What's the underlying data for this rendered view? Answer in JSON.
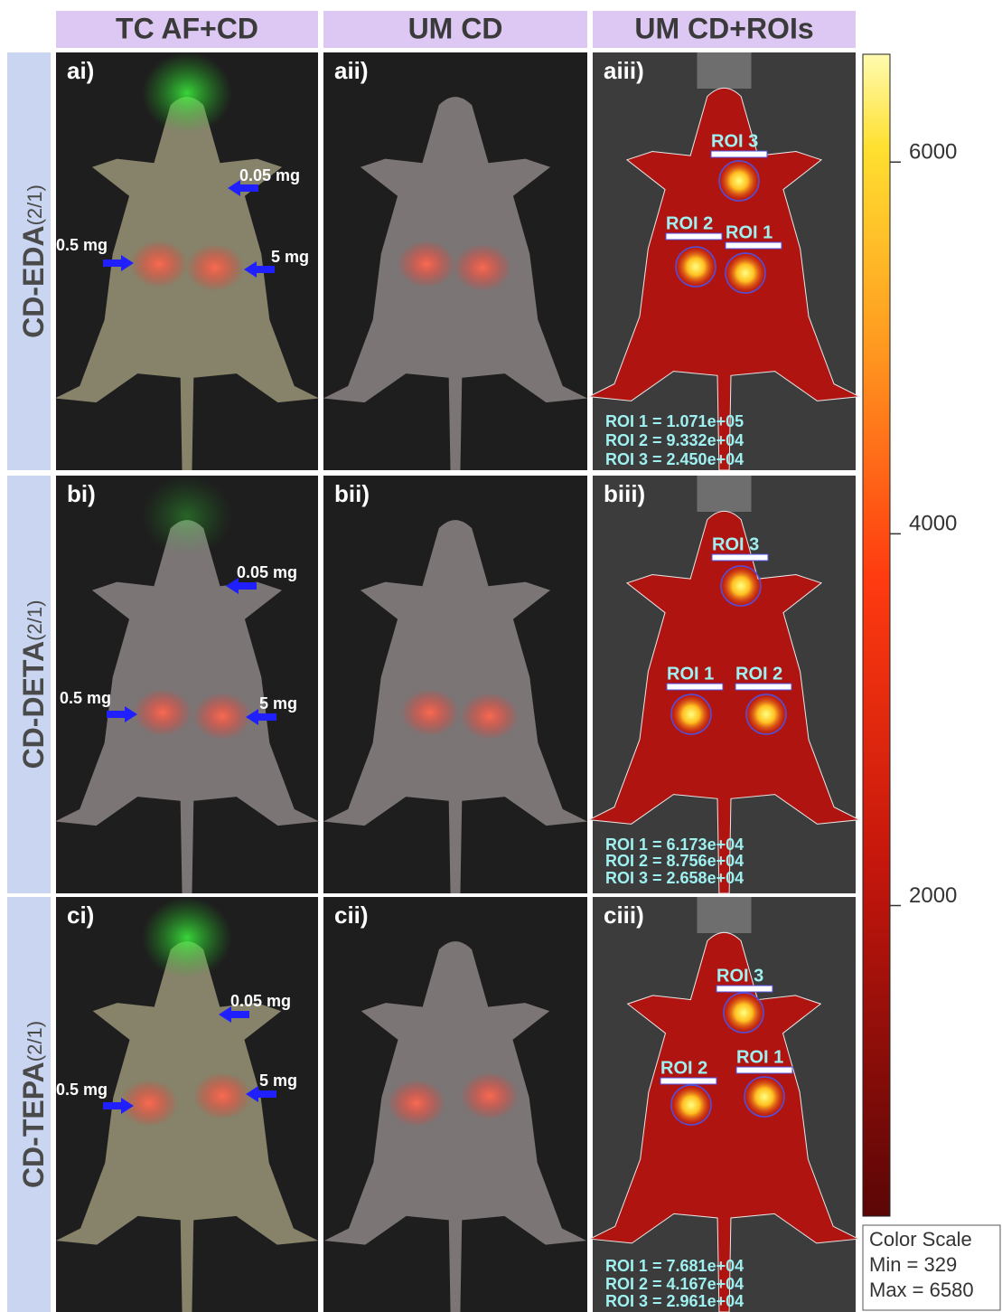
{
  "columns": [
    "TC AF+CD",
    "UM CD",
    "UM CD+ROIs"
  ],
  "rows": [
    {
      "label": "CD-EDA",
      "subscript": "(2/1)",
      "panels": [
        "ai)",
        "aii)",
        "aiii)"
      ],
      "doses": [
        "0.05 mg",
        "0.5 mg",
        "5 mg"
      ],
      "rois": [
        "ROI 1",
        "ROI 2",
        "ROI 3"
      ],
      "roi_values": [
        "ROI 1 = 1.071e+05",
        "ROI 2 = 9.332e+04",
        "ROI 3 = 2.450e+04"
      ]
    },
    {
      "label": "CD-DETA",
      "subscript": "(2/1)",
      "panels": [
        "bi)",
        "bii)",
        "biii)"
      ],
      "doses": [
        "0.05 mg",
        "0.5 mg",
        "5 mg"
      ],
      "rois": [
        "ROI 1",
        "ROI 2",
        "ROI 3"
      ],
      "roi_values": [
        "ROI 1 = 6.173e+04",
        "ROI 2 = 8.756e+04",
        "ROI 3 = 2.658e+04"
      ]
    },
    {
      "label": "CD-TEPA",
      "subscript": "(2/1)",
      "panels": [
        "ci)",
        "cii)",
        "ciii)"
      ],
      "doses": [
        "0.05 mg",
        "0.5 mg",
        "5 mg"
      ],
      "rois": [
        "ROI 1",
        "ROI 2",
        "ROI 3"
      ],
      "roi_values": [
        "ROI 1 = 7.681e+04",
        "ROI 2 = 4.167e+04",
        "ROI 3 = 2.961e+04"
      ]
    }
  ],
  "color_scale": {
    "title": "Color Scale",
    "min": {
      "value": 329,
      "label": "Min = 329"
    },
    "max": {
      "value": 6580,
      "label": "Max = 6580"
    },
    "ticks": [
      2000,
      4000,
      6000
    ]
  }
}
